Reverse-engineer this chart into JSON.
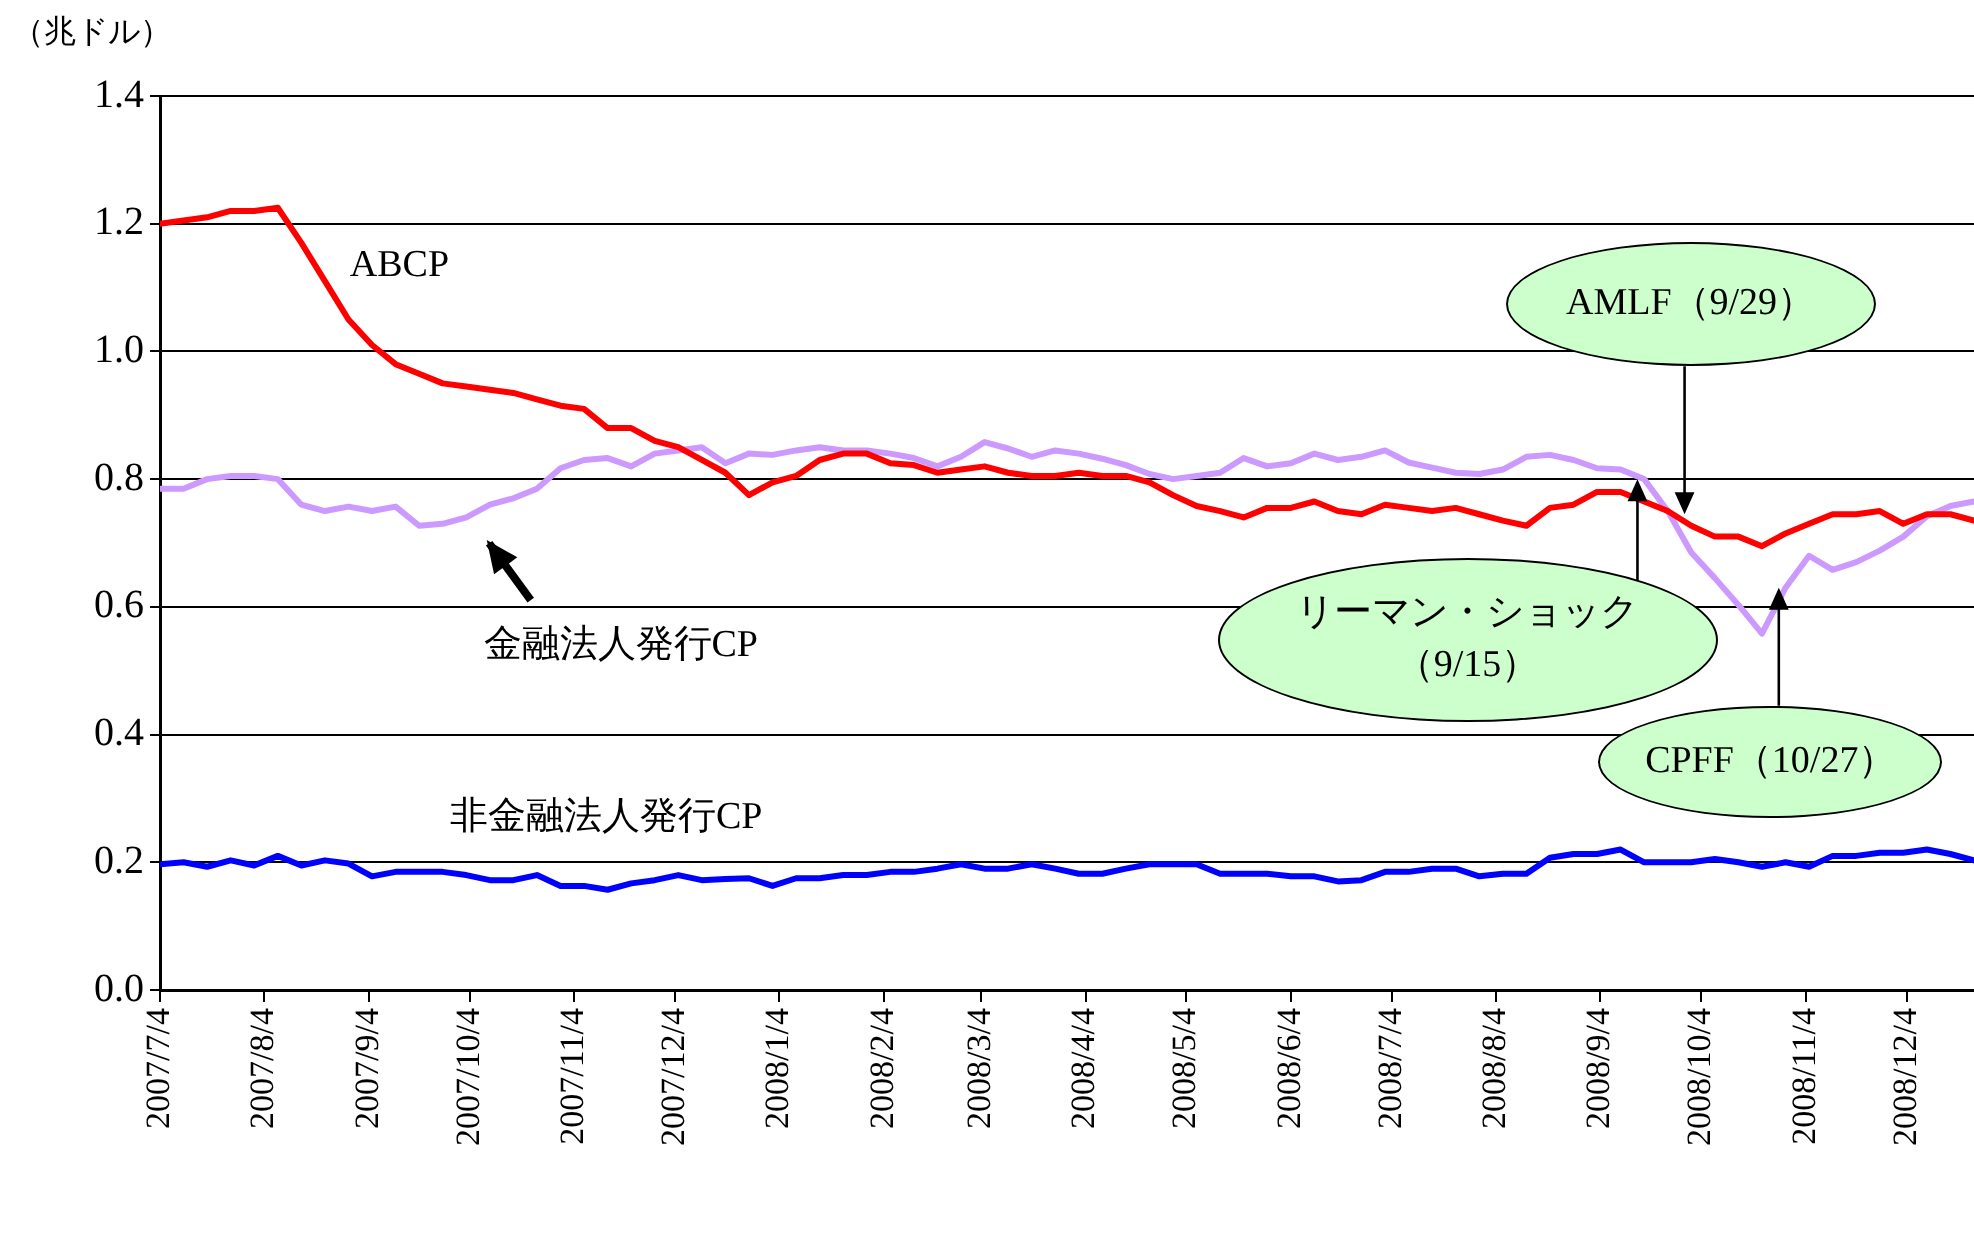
{
  "chart_data": {
    "type": "line",
    "ylabel": "（兆ドル）",
    "grid": "y",
    "marker": "none",
    "line_style": "solid",
    "x": [
      "2007-07-04",
      "2007-07-11",
      "2007-07-18",
      "2007-07-25",
      "2007-08-01",
      "2007-08-08",
      "2007-08-15",
      "2007-08-22",
      "2007-08-29",
      "2007-09-05",
      "2007-09-12",
      "2007-09-19",
      "2007-09-26",
      "2007-10-03",
      "2007-10-10",
      "2007-10-17",
      "2007-10-24",
      "2007-10-31",
      "2007-11-07",
      "2007-11-14",
      "2007-11-21",
      "2007-11-28",
      "2007-12-05",
      "2007-12-12",
      "2007-12-19",
      "2007-12-26",
      "2008-01-02",
      "2008-01-09",
      "2008-01-16",
      "2008-01-23",
      "2008-01-30",
      "2008-02-06",
      "2008-02-13",
      "2008-02-20",
      "2008-02-27",
      "2008-03-05",
      "2008-03-12",
      "2008-03-19",
      "2008-03-26",
      "2008-04-02",
      "2008-04-09",
      "2008-04-16",
      "2008-04-23",
      "2008-04-30",
      "2008-05-07",
      "2008-05-14",
      "2008-05-21",
      "2008-05-28",
      "2008-06-04",
      "2008-06-11",
      "2008-06-18",
      "2008-06-25",
      "2008-07-02",
      "2008-07-09",
      "2008-07-16",
      "2008-07-23",
      "2008-07-30",
      "2008-08-06",
      "2008-08-13",
      "2008-08-20",
      "2008-08-27",
      "2008-09-03",
      "2008-09-10",
      "2008-09-17",
      "2008-09-24",
      "2008-10-01",
      "2008-10-08",
      "2008-10-15",
      "2008-10-22",
      "2008-10-29",
      "2008-11-05",
      "2008-11-12",
      "2008-11-19",
      "2008-11-26",
      "2008-12-03",
      "2008-12-10",
      "2008-12-17",
      "2008-12-24"
    ],
    "xlim": [
      "2007-07-04",
      "2008-12-24"
    ],
    "xticks": [
      {
        "value": "2007-07-04",
        "label": "2007/7/4"
      },
      {
        "value": "2007-08-04",
        "label": "2007/8/4"
      },
      {
        "value": "2007-09-04",
        "label": "2007/9/4"
      },
      {
        "value": "2007-10-04",
        "label": "2007/10/4"
      },
      {
        "value": "2007-11-04",
        "label": "2007/11/4"
      },
      {
        "value": "2007-12-04",
        "label": "2007/12/4"
      },
      {
        "value": "2008-01-04",
        "label": "2008/1/4"
      },
      {
        "value": "2008-02-04",
        "label": "2008/2/4"
      },
      {
        "value": "2008-03-04",
        "label": "2008/3/4"
      },
      {
        "value": "2008-04-04",
        "label": "2008/4/4"
      },
      {
        "value": "2008-05-04",
        "label": "2008/5/4"
      },
      {
        "value": "2008-06-04",
        "label": "2008/6/4"
      },
      {
        "value": "2008-07-04",
        "label": "2008/7/4"
      },
      {
        "value": "2008-08-04",
        "label": "2008/8/4"
      },
      {
        "value": "2008-09-04",
        "label": "2008/9/4"
      },
      {
        "value": "2008-10-04",
        "label": "2008/10/4"
      },
      {
        "value": "2008-11-04",
        "label": "2008/11/4"
      },
      {
        "value": "2008-12-04",
        "label": "2008/12/4"
      }
    ],
    "ylim": [
      0,
      1.4
    ],
    "yticks": [
      {
        "value": 0,
        "label": "0.0"
      },
      {
        "value": 0.2,
        "label": "0.2"
      },
      {
        "value": 0.4,
        "label": "0.4"
      },
      {
        "value": 0.6,
        "label": "0.6"
      },
      {
        "value": 0.8,
        "label": "0.8"
      },
      {
        "value": 1,
        "label": "1.0"
      },
      {
        "value": 1.2,
        "label": "1.2"
      },
      {
        "value": 1.4,
        "label": "1.4"
      }
    ],
    "series": [
      {
        "name": "ABCP",
        "color": "#ff0000",
        "values": [
          1.2,
          1.205,
          1.21,
          1.22,
          1.22,
          1.225,
          1.17,
          1.11,
          1.05,
          1.01,
          0.98,
          0.965,
          0.95,
          0.945,
          0.94,
          0.935,
          0.925,
          0.915,
          0.91,
          0.88,
          0.88,
          0.86,
          0.85,
          0.83,
          0.81,
          0.775,
          0.795,
          0.805,
          0.83,
          0.84,
          0.84,
          0.825,
          0.822,
          0.81,
          0.815,
          0.82,
          0.81,
          0.805,
          0.805,
          0.81,
          0.805,
          0.805,
          0.795,
          0.775,
          0.758,
          0.75,
          0.74,
          0.755,
          0.755,
          0.765,
          0.75,
          0.745,
          0.76,
          0.755,
          0.75,
          0.755,
          0.745,
          0.735,
          0.727,
          0.755,
          0.76,
          0.78,
          0.78,
          0.765,
          0.75,
          0.727,
          0.71,
          0.71,
          0.695,
          0.715,
          0.73,
          0.745,
          0.745,
          0.75,
          0.73,
          0.745,
          0.745,
          0.735
        ]
      },
      {
        "name": "金融法人発行CP",
        "color": "#cc99ff",
        "values": [
          0.785,
          0.785,
          0.8,
          0.805,
          0.805,
          0.8,
          0.76,
          0.75,
          0.757,
          0.75,
          0.757,
          0.727,
          0.73,
          0.74,
          0.76,
          0.77,
          0.785,
          0.817,
          0.83,
          0.833,
          0.82,
          0.84,
          0.845,
          0.85,
          0.825,
          0.84,
          0.838,
          0.845,
          0.85,
          0.845,
          0.845,
          0.84,
          0.833,
          0.82,
          0.835,
          0.858,
          0.848,
          0.835,
          0.845,
          0.84,
          0.832,
          0.822,
          0.808,
          0.8,
          0.805,
          0.81,
          0.833,
          0.82,
          0.825,
          0.84,
          0.83,
          0.835,
          0.845,
          0.826,
          0.818,
          0.81,
          0.808,
          0.815,
          0.835,
          0.838,
          0.83,
          0.817,
          0.815,
          0.8,
          0.75,
          0.685,
          0.645,
          0.603,
          0.558,
          0.63,
          0.68,
          0.658,
          0.67,
          0.688,
          0.71,
          0.742,
          0.758,
          0.765
        ]
      },
      {
        "name": "非金融法人発行CP",
        "color": "#0000ff",
        "values": [
          0.197,
          0.2,
          0.193,
          0.203,
          0.195,
          0.21,
          0.195,
          0.203,
          0.198,
          0.178,
          0.185,
          0.185,
          0.185,
          0.18,
          0.172,
          0.172,
          0.18,
          0.163,
          0.163,
          0.157,
          0.167,
          0.172,
          0.18,
          0.172,
          0.174,
          0.175,
          0.163,
          0.175,
          0.175,
          0.18,
          0.18,
          0.185,
          0.185,
          0.19,
          0.197,
          0.19,
          0.19,
          0.197,
          0.19,
          0.182,
          0.182,
          0.19,
          0.197,
          0.197,
          0.197,
          0.182,
          0.182,
          0.182,
          0.178,
          0.178,
          0.17,
          0.172,
          0.185,
          0.185,
          0.19,
          0.19,
          0.178,
          0.182,
          0.182,
          0.207,
          0.213,
          0.213,
          0.22,
          0.2,
          0.2,
          0.2,
          0.205,
          0.2,
          0.193,
          0.2,
          0.193,
          0.21,
          0.21,
          0.215,
          0.215,
          0.22,
          0.213,
          0.203
        ]
      }
    ],
    "annotations": [
      {
        "text": "AMLF（9/29）",
        "x": "2008-09-29",
        "y": 0.745
      },
      {
        "text": "リーマン・ショック（9/15）",
        "x": "2008-09-15",
        "y": 0.8
      },
      {
        "text": "CPFF（10/27）",
        "x": "2008-10-27",
        "y": 0.63
      }
    ]
  }
}
